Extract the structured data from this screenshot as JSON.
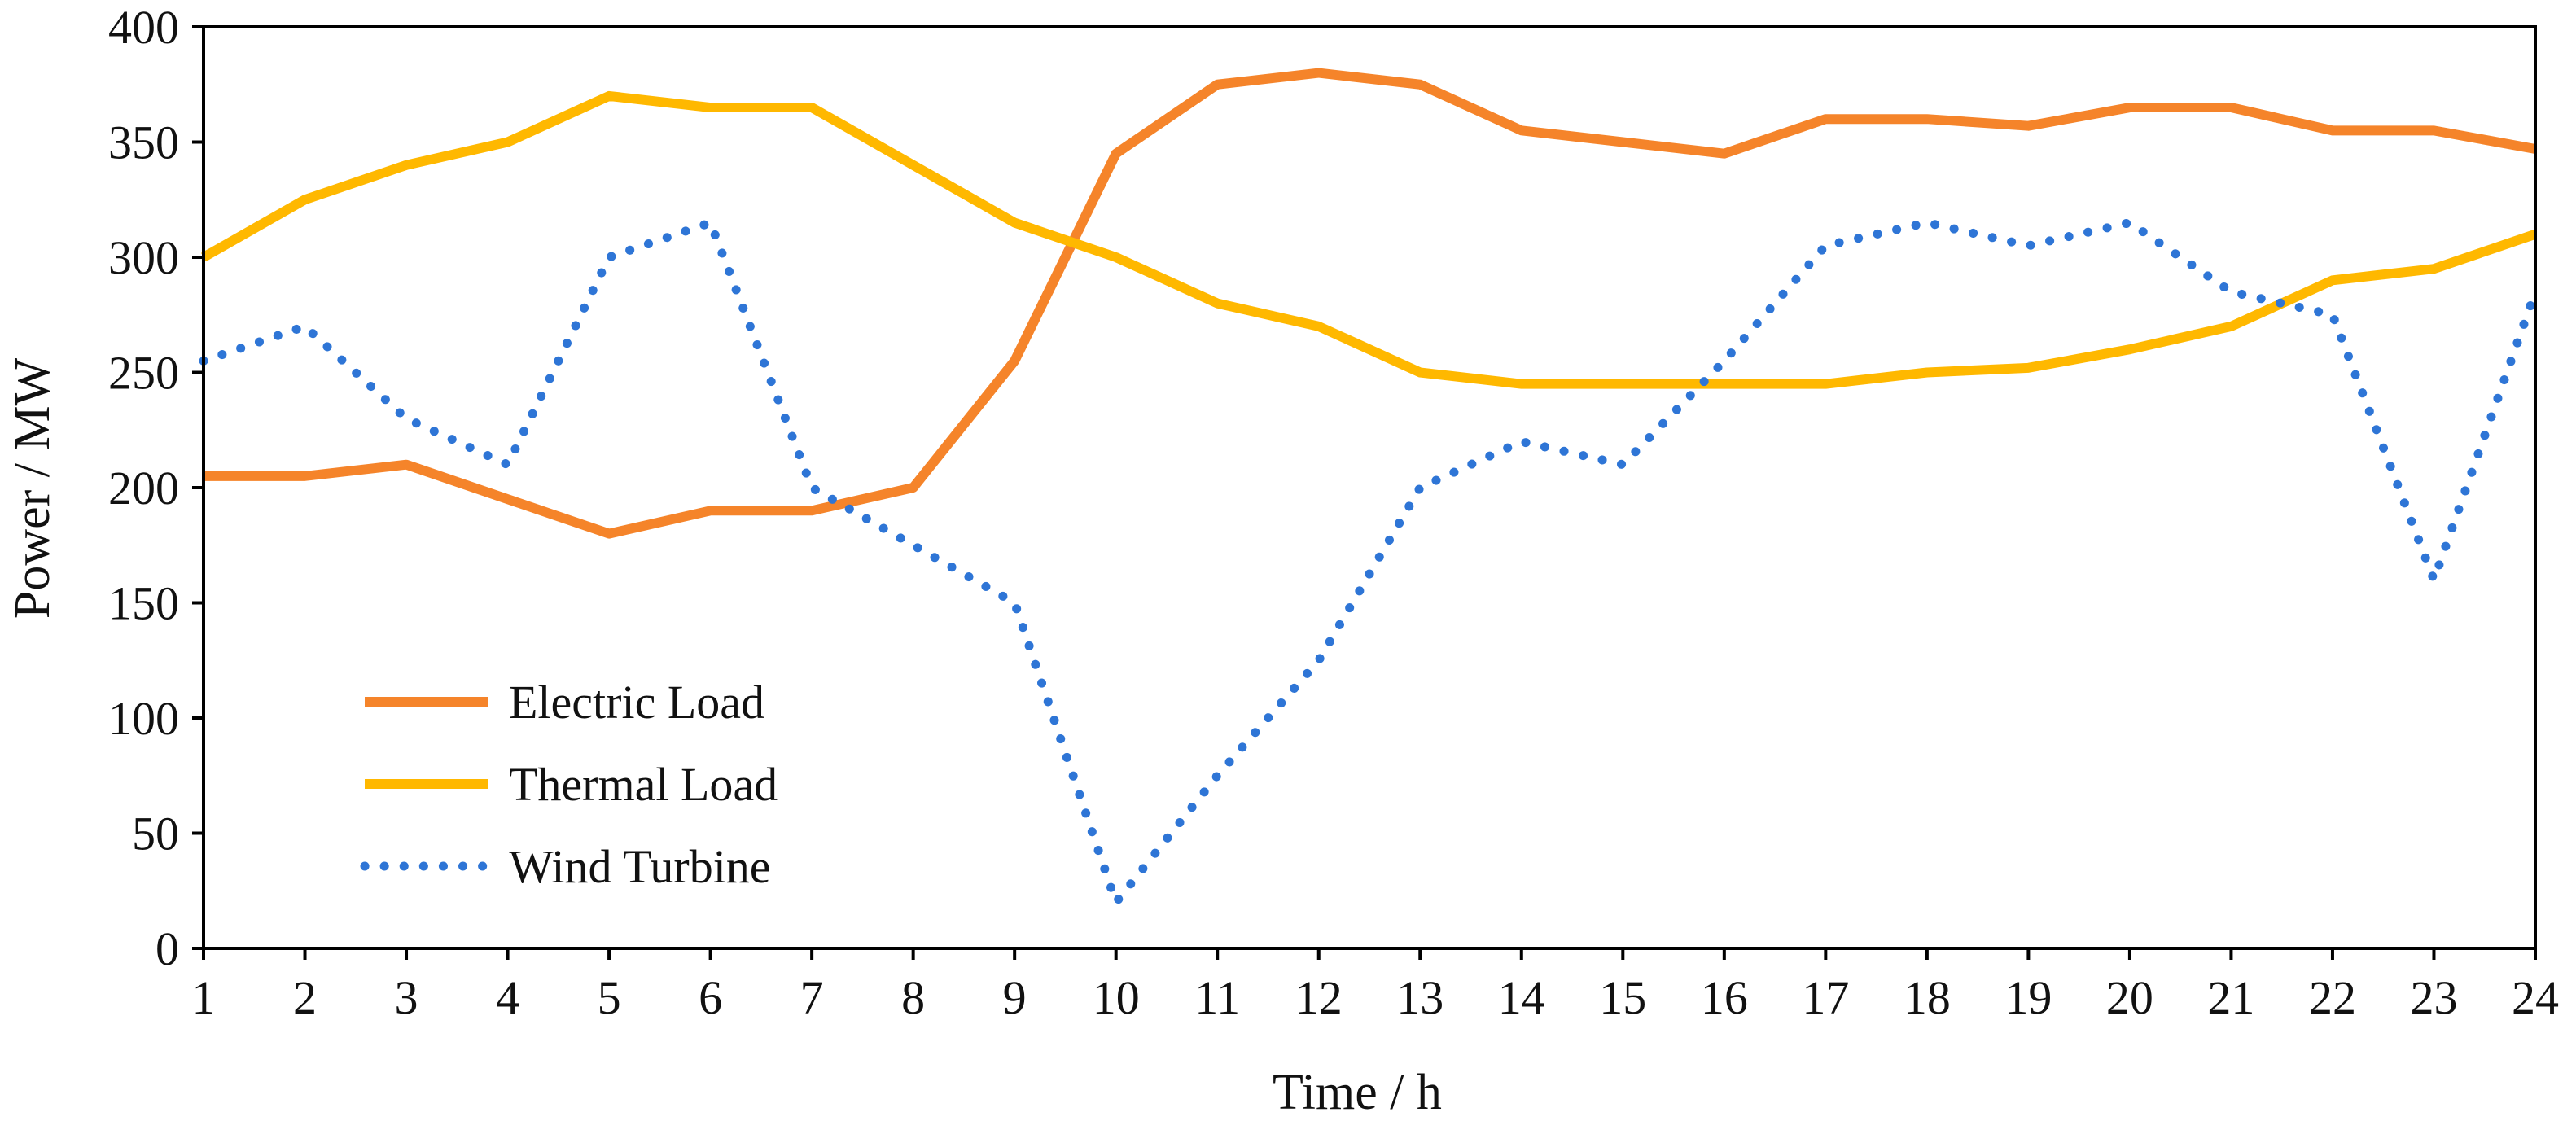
{
  "chart_data": {
    "type": "line",
    "title": "",
    "xlabel": "Time / h",
    "ylabel": "Power / MW",
    "x": [
      1,
      2,
      3,
      4,
      5,
      6,
      7,
      8,
      9,
      10,
      11,
      12,
      13,
      14,
      15,
      16,
      17,
      18,
      19,
      20,
      21,
      22,
      23,
      24
    ],
    "xlim": [
      1,
      24
    ],
    "ylim": [
      0,
      400
    ],
    "yticks": [
      0,
      50,
      100,
      150,
      200,
      250,
      300,
      350,
      400
    ],
    "grid": false,
    "legend_position": "bottom-left",
    "series": [
      {
        "name": "Electric Load",
        "color": "#F5842A",
        "style": "solid",
        "values": [
          205,
          205,
          210,
          195,
          180,
          190,
          190,
          200,
          255,
          345,
          375,
          380,
          375,
          355,
          350,
          345,
          360,
          360,
          357,
          365,
          365,
          355,
          355,
          347
        ]
      },
      {
        "name": "Thermal Load",
        "color": "#FFB800",
        "style": "solid",
        "values": [
          300,
          325,
          340,
          350,
          370,
          365,
          365,
          340,
          315,
          300,
          280,
          270,
          250,
          245,
          245,
          245,
          245,
          250,
          252,
          260,
          270,
          290,
          295,
          310
        ]
      },
      {
        "name": "Wind Turbine",
        "color": "#2E75D6",
        "style": "dotted",
        "values": [
          255,
          270,
          230,
          210,
          300,
          315,
          200,
          175,
          150,
          20,
          75,
          125,
          200,
          220,
          210,
          255,
          305,
          315,
          305,
          315,
          285,
          275,
          160,
          285
        ]
      }
    ]
  }
}
